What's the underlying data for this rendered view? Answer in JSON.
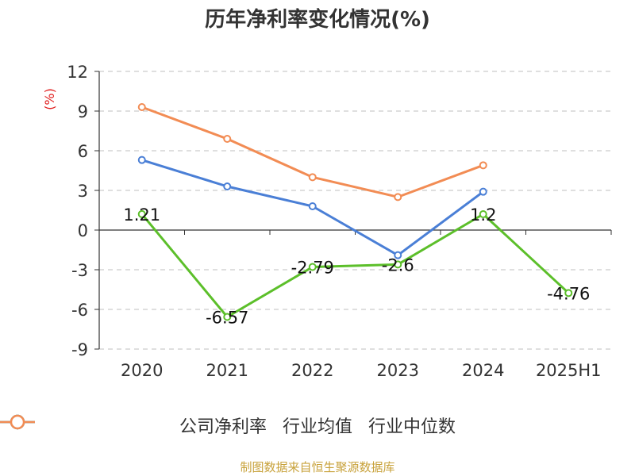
{
  "title": "历年净利率变化情况(%)",
  "source_text": "制图数据来自恒生聚源数据库",
  "chart_data": {
    "type": "line",
    "title": "历年净利率变化情况(%)",
    "ylabel": "(%)",
    "xlabel": "",
    "categories": [
      "2020",
      "2021",
      "2022",
      "2023",
      "2024",
      "2025H1"
    ],
    "ylim": [
      -9,
      12
    ],
    "yticks": [
      "12",
      "9",
      "6",
      "3",
      "0",
      "-3",
      "-6",
      "-9"
    ],
    "grid": true,
    "legend_position": "bottom",
    "series": [
      {
        "name": "公司净利率",
        "color": "#5cbf2a",
        "values": [
          1.21,
          -6.57,
          -2.79,
          -2.6,
          1.2,
          -4.76
        ],
        "labels": [
          "1.21",
          "-6.57",
          "-2.79",
          "-2.6",
          "1.2",
          "-4.76"
        ]
      },
      {
        "name": "行业均值",
        "color": "#4a7fd6",
        "values": [
          5.3,
          3.3,
          1.8,
          -1.9,
          2.9,
          null
        ]
      },
      {
        "name": "行业中位数",
        "color": "#f28c54",
        "values": [
          9.3,
          6.9,
          4.0,
          2.5,
          4.9,
          null
        ]
      }
    ]
  }
}
